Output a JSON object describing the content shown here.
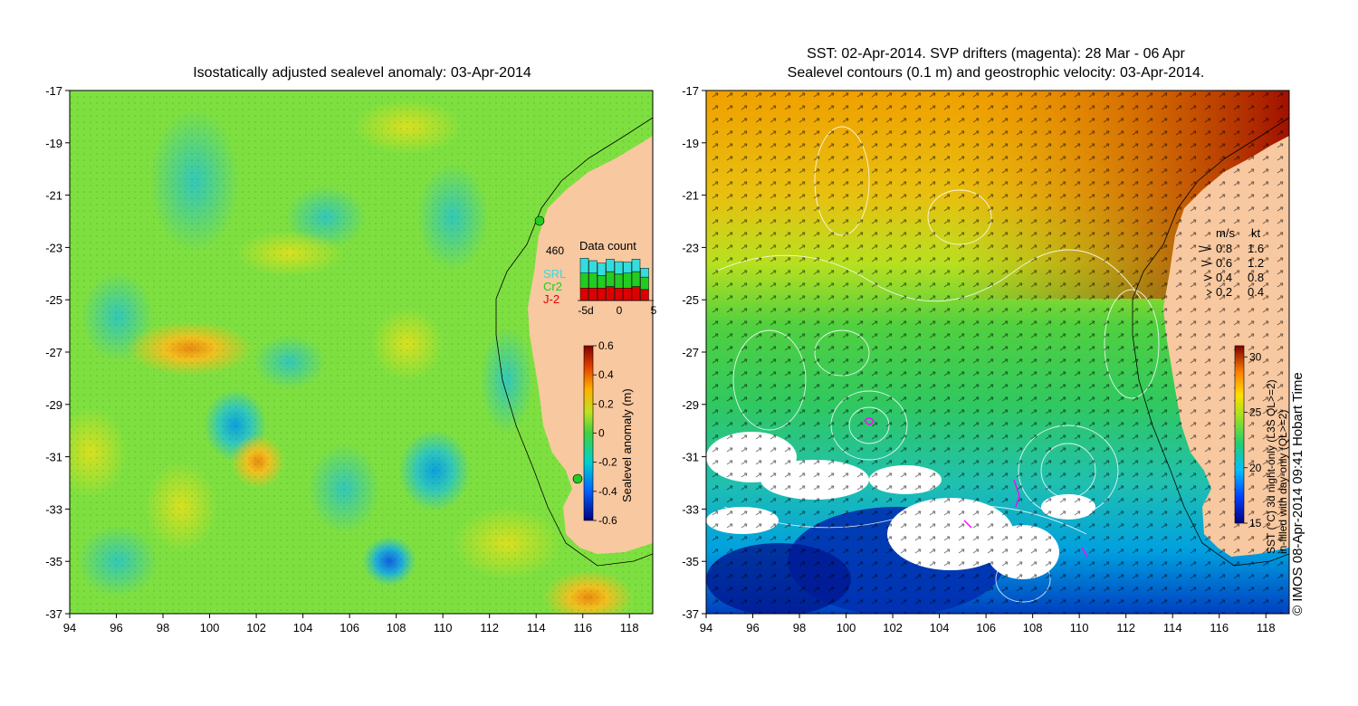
{
  "left_panel": {
    "title": "Isostatically adjusted sealevel anomaly: 03-Apr-2014",
    "x_ticks": [
      "94",
      "96",
      "98",
      "100",
      "102",
      "104",
      "106",
      "108",
      "110",
      "112",
      "114",
      "116",
      "118"
    ],
    "y_ticks": [
      "-17",
      "-19",
      "-21",
      "-23",
      "-25",
      "-27",
      "-29",
      "-31",
      "-33",
      "-35",
      "-37"
    ],
    "lon_range": [
      94,
      119
    ],
    "lat_range": [
      -37,
      -17
    ],
    "data_count": {
      "title": "Data count",
      "max_label": "460",
      "x_ticks": [
        "-5d",
        "0",
        "5"
      ],
      "legend": [
        {
          "label": "SRL",
          "color": "#33dddd"
        },
        {
          "label": "Cr2",
          "color": "#22cc22"
        },
        {
          "label": "J-2",
          "color": "#dd0000"
        }
      ],
      "bars": [
        {
          "srl": 0.3,
          "cr2": 0.3,
          "j2": 0.25
        },
        {
          "srl": 0.25,
          "cr2": 0.3,
          "j2": 0.25
        },
        {
          "srl": 0.25,
          "cr2": 0.25,
          "j2": 0.25
        },
        {
          "srl": 0.25,
          "cr2": 0.3,
          "j2": 0.28
        },
        {
          "srl": 0.25,
          "cr2": 0.28,
          "j2": 0.25
        },
        {
          "srl": 0.22,
          "cr2": 0.3,
          "j2": 0.25
        },
        {
          "srl": 0.25,
          "cr2": 0.3,
          "j2": 0.28
        },
        {
          "srl": 0.18,
          "cr2": 0.25,
          "j2": 0.22
        }
      ]
    },
    "colorbar": {
      "label": "Sealevel anomaly (m)",
      "ticks": [
        "0.6",
        "0.4",
        "0.2",
        "0",
        "-0.2",
        "-0.4",
        "-0.6"
      ],
      "range": [
        -0.6,
        0.6
      ]
    }
  },
  "right_panel": {
    "title_line1": "SST: 02-Apr-2014. SVP drifters (magenta): 28 Mar - 06 Apr",
    "title_line2": "Sealevel contours (0.1 m) and geostrophic velocity: 03-Apr-2014.",
    "x_ticks": [
      "94",
      "96",
      "98",
      "100",
      "102",
      "104",
      "106",
      "108",
      "110",
      "112",
      "114",
      "116",
      "118"
    ],
    "y_ticks": [
      "-17",
      "-19",
      "-21",
      "-23",
      "-25",
      "-27",
      "-29",
      "-31",
      "-33",
      "-35",
      "-37"
    ],
    "lon_range": [
      94,
      119
    ],
    "lat_range": [
      -37,
      -17
    ],
    "velocity_legend": {
      "header_ms": "m/s",
      "header_kt": "kt",
      "rows": [
        {
          "ms": "0.8",
          "kt": "1.6"
        },
        {
          "ms": "0.6",
          "kt": "1.2"
        },
        {
          "ms": "0.4",
          "kt": "0.8"
        },
        {
          "ms": "0.2",
          "kt": "0.4"
        }
      ]
    },
    "colorbar": {
      "label_line1": "SST (°C) 3d night-only (L3S QL>=2)",
      "label_line2": "in-filled with day-only (QL>=2)",
      "ticks": [
        "30",
        "25",
        "20",
        "15"
      ],
      "range": [
        15,
        31
      ]
    }
  },
  "credit": "© IMOS 08-Apr-2014 09:41 Hobart Time"
}
